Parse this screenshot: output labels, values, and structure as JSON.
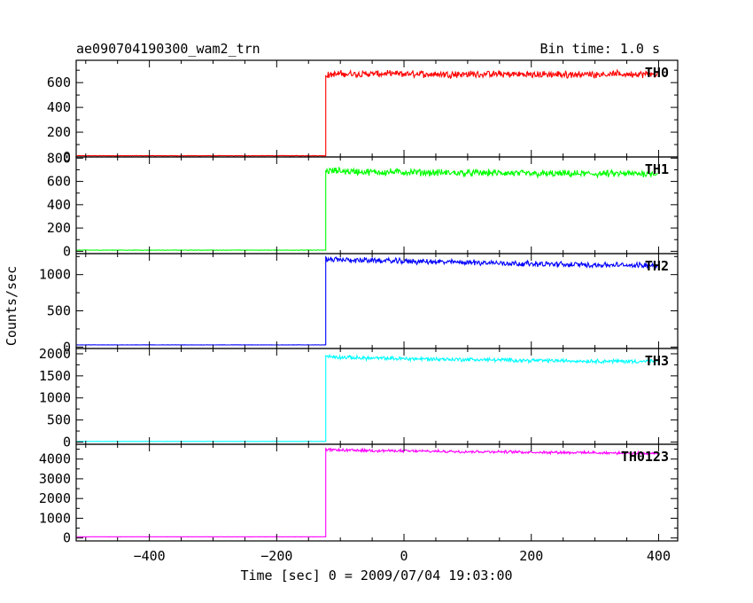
{
  "chart_data": {
    "type": "line",
    "title": "ae090704190300_wam2_trn",
    "subtitle": "Bin time: 1.0 s",
    "xlabel": "Time [sec] 0 = 2009/07/04 19:03:00",
    "ylabel": "Counts/sec",
    "xlim": [
      -515,
      430
    ],
    "xticks": [
      -400,
      -200,
      0,
      200,
      400
    ],
    "xtick_labels": [
      "−400",
      "−200",
      "0",
      "200",
      "400"
    ],
    "rise_time": -123,
    "background": "#ffffff",
    "panels": [
      {
        "name": "TH0",
        "color": "#ff0000",
        "ylim": [
          0,
          780
        ],
        "yticks": [
          0,
          200,
          400,
          600
        ],
        "ytick_labels": [
          "0",
          "200",
          "400",
          "600"
        ],
        "pre_level": 10,
        "post_x": [
          -123,
          -100,
          -50,
          0,
          50,
          100,
          150,
          200,
          250,
          300,
          350,
          400
        ],
        "post_y": [
          660,
          670,
          670,
          670,
          668,
          668,
          668,
          665,
          665,
          668,
          668,
          665
        ],
        "noise": 22
      },
      {
        "name": "TH1",
        "color": "#00ff00",
        "ylim": [
          -20,
          810
        ],
        "yticks": [
          0,
          200,
          400,
          600,
          800
        ],
        "ytick_labels": [
          "0",
          "200",
          "400",
          "600",
          "800"
        ],
        "pre_level": 10,
        "post_x": [
          -123,
          -100,
          -50,
          0,
          50,
          100,
          150,
          200,
          250,
          300,
          350,
          400
        ],
        "post_y": [
          690,
          690,
          680,
          680,
          675,
          672,
          672,
          665,
          665,
          665,
          665,
          670
        ],
        "noise": 24
      },
      {
        "name": "TH2",
        "color": "#0000ff",
        "ylim": [
          -20,
          1290
        ],
        "yticks": [
          0,
          500,
          1000
        ],
        "ytick_labels": [
          "0",
          "500",
          "1000"
        ],
        "pre_level": 30,
        "post_x": [
          -123,
          -100,
          -50,
          0,
          50,
          100,
          150,
          200,
          250,
          300,
          350,
          400
        ],
        "post_y": [
          1210,
          1205,
          1195,
          1185,
          1175,
          1170,
          1160,
          1150,
          1140,
          1135,
          1130,
          1130
        ],
        "noise": 30
      },
      {
        "name": "TH3",
        "color": "#00ffff",
        "ylim": [
          -50,
          2120
        ],
        "yticks": [
          0,
          500,
          1000,
          1500,
          2000
        ],
        "ytick_labels": [
          "0",
          "500",
          "1000",
          "1500",
          "2000"
        ],
        "pre_level": 15,
        "post_x": [
          -123,
          -100,
          -50,
          0,
          50,
          100,
          150,
          200,
          250,
          300,
          350,
          400
        ],
        "post_y": [
          1940,
          1920,
          1900,
          1890,
          1880,
          1870,
          1860,
          1850,
          1840,
          1835,
          1830,
          1830
        ],
        "noise": 35
      },
      {
        "name": "TH0123",
        "color": "#ff00ff",
        "ylim": [
          -150,
          4750
        ],
        "yticks": [
          0,
          1000,
          2000,
          3000,
          4000
        ],
        "ytick_labels": [
          "0",
          "1000",
          "2000",
          "3000",
          "4000"
        ],
        "pre_level": 60,
        "post_x": [
          -123,
          -100,
          -50,
          0,
          50,
          100,
          150,
          200,
          250,
          300,
          350,
          400
        ],
        "post_y": [
          4470,
          4450,
          4430,
          4410,
          4390,
          4380,
          4370,
          4350,
          4340,
          4320,
          4300,
          4290
        ],
        "noise": 55
      }
    ]
  }
}
